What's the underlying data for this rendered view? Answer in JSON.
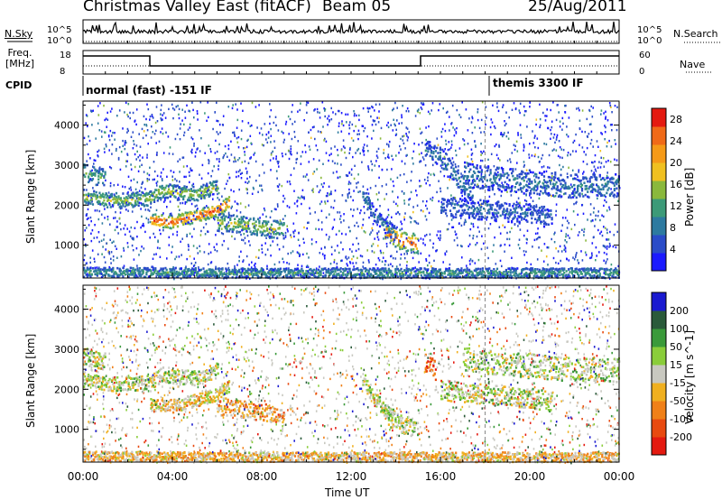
{
  "header": {
    "station": "Christmas Valley East (fitACF)",
    "beam": "Beam 05",
    "date": "25/Aug/2011"
  },
  "top_panels": {
    "nsky_label": "N.Sky",
    "nsky_ticks": [
      "10^5",
      "10^0"
    ],
    "nsearch_label": "N.Search",
    "nsearch_ticks": [
      "10^5",
      "10^0"
    ],
    "freq_label_line1": "Freq.",
    "freq_label_line2": "[MHz]",
    "freq_ticks": [
      "18",
      "8"
    ],
    "nave_label": "Nave",
    "nave_ticks": [
      "60",
      "0"
    ],
    "cpid_label": "CPID",
    "cpid_segments": [
      {
        "text": "normal (fast) -151 IF",
        "start_hour": 0
      },
      {
        "text": "themis 3300 IF",
        "start_hour": 18
      }
    ]
  },
  "chart_data": [
    {
      "type": "heatmap",
      "title": "",
      "xlabel": "",
      "ylabel": "Slant Range [km]",
      "xlim": [
        0,
        24
      ],
      "ylim": [
        180,
        4600
      ],
      "yticks": [
        "1000",
        "2000",
        "3000",
        "4000"
      ],
      "colorbar_label": "Power [dB]",
      "colorbar_ticks": [
        "4",
        "8",
        "12",
        "16",
        "20",
        "24",
        "28"
      ],
      "colorbar_range": [
        0,
        30
      ],
      "colorbar_colors": [
        "#1a1aff",
        "#2a4cc8",
        "#2d7aa0",
        "#3c9a78",
        "#8ab83c",
        "#f0c020",
        "#f59a18",
        "#f06a18",
        "#e41a10"
      ],
      "scatter_features": [
        {
          "name": "band-a",
          "points": [
            [
              0,
              2250
            ],
            [
              1,
              2150
            ],
            [
              2,
              2150
            ],
            [
              3,
              2200
            ],
            [
              3.5,
              2400
            ],
            [
              4,
              2350
            ],
            [
              5,
              2300
            ],
            [
              6,
              2500
            ]
          ],
          "width_km": 180,
          "level": 0.55
        },
        {
          "name": "band-b",
          "points": [
            [
              0,
              2850
            ],
            [
              0.5,
              2750
            ],
            [
              1,
              2700
            ]
          ],
          "width_km": 220,
          "level": 0.45
        },
        {
          "name": "band-c",
          "points": [
            [
              3,
              1650
            ],
            [
              4,
              1600
            ],
            [
              5,
              1750
            ],
            [
              6,
              1900
            ],
            [
              6.5,
              2100
            ]
          ],
          "width_km": 160,
          "level": 0.9
        },
        {
          "name": "band-d",
          "points": [
            [
              6,
              1600
            ],
            [
              7,
              1550
            ],
            [
              8,
              1450
            ],
            [
              9,
              1400
            ]
          ],
          "width_km": 220,
          "level": 0.55
        },
        {
          "name": "band-e",
          "points": [
            [
              13.5,
              1400
            ],
            [
              14,
              1200
            ],
            [
              14.5,
              1100
            ],
            [
              15,
              1050
            ]
          ],
          "width_km": 240,
          "level": 0.85
        },
        {
          "name": "band-f",
          "points": [
            [
              12.5,
              2300
            ],
            [
              13,
              1800
            ],
            [
              13.5,
              1500
            ],
            [
              14,
              1300
            ]
          ],
          "width_km": 180,
          "level": 0.3
        },
        {
          "name": "band-g",
          "points": [
            [
              15.3,
              3400
            ],
            [
              16,
              3200
            ],
            [
              17,
              2500
            ],
            [
              17.5,
              2200
            ]
          ],
          "width_km": 260,
          "level": 0.3
        },
        {
          "name": "band-h",
          "points": [
            [
              17,
              2800
            ],
            [
              18,
              2700
            ],
            [
              20,
              2600
            ],
            [
              22,
              2500
            ],
            [
              24,
              2500
            ]
          ],
          "width_km": 300,
          "level": 0.3
        },
        {
          "name": "band-i",
          "points": [
            [
              16,
              2000
            ],
            [
              18,
              1900
            ],
            [
              20,
              1800
            ],
            [
              21,
              1700
            ]
          ],
          "width_km": 250,
          "level": 0.25
        },
        {
          "name": "band-j",
          "points": [
            [
              0,
              350
            ],
            [
              6,
              330
            ],
            [
              12,
              330
            ],
            [
              18,
              330
            ],
            [
              24,
              330
            ]
          ],
          "width_km": 120,
          "level": 0.4
        }
      ]
    },
    {
      "type": "heatmap",
      "title": "",
      "xlabel": "Time UT",
      "ylabel": "Slant Range [km]",
      "xlim": [
        0,
        24
      ],
      "xticks": [
        "00:00",
        "04:00",
        "08:00",
        "12:00",
        "16:00",
        "20:00",
        "00:00"
      ],
      "ylim": [
        180,
        4600
      ],
      "yticks": [
        "1000",
        "2000",
        "3000",
        "4000"
      ],
      "colorbar_label": "Velocity [m s^-1]",
      "colorbar_ticks": [
        "200",
        "100",
        "50",
        "15",
        "-15",
        "-50",
        "-100",
        "-200"
      ],
      "colorbar_colors": [
        "#1a1ad0",
        "#2a5a3a",
        "#3a9a3a",
        "#8acd3a",
        "#c8c8c0",
        "#f0b020",
        "#f08018",
        "#e84a10",
        "#e41a10"
      ],
      "scatter_features": [
        {
          "name": "band-a",
          "points": [
            [
              0,
              2250
            ],
            [
              1,
              2150
            ],
            [
              2,
              2150
            ],
            [
              3,
              2200
            ],
            [
              3.5,
              2400
            ],
            [
              4,
              2350
            ],
            [
              5,
              2300
            ],
            [
              6,
              2500
            ]
          ],
          "width_km": 180,
          "level": 0.45
        },
        {
          "name": "band-b",
          "points": [
            [
              0,
              2850
            ],
            [
              0.5,
              2750
            ],
            [
              1,
              2700
            ]
          ],
          "width_km": 220,
          "level": 0.45
        },
        {
          "name": "band-c",
          "points": [
            [
              3,
              1650
            ],
            [
              4,
              1600
            ],
            [
              5,
              1750
            ],
            [
              6,
              1900
            ],
            [
              6.5,
              2100
            ]
          ],
          "width_km": 160,
          "level": 0.55
        },
        {
          "name": "band-d",
          "points": [
            [
              6,
              1600
            ],
            [
              7,
              1550
            ],
            [
              8,
              1450
            ],
            [
              9,
              1400
            ]
          ],
          "width_km": 220,
          "level": 0.65
        },
        {
          "name": "band-e",
          "points": [
            [
              13.5,
              1400
            ],
            [
              14,
              1200
            ],
            [
              14.5,
              1100
            ],
            [
              15,
              1050
            ]
          ],
          "width_km": 240,
          "level": 0.45
        },
        {
          "name": "band-f",
          "points": [
            [
              12.5,
              2300
            ],
            [
              13,
              1800
            ],
            [
              13.5,
              1500
            ],
            [
              14,
              1300
            ]
          ],
          "width_km": 180,
          "level": 0.45
        },
        {
          "name": "band-g",
          "points": [
            [
              15.3,
              2700
            ],
            [
              15.8,
              2500
            ]
          ],
          "width_km": 260,
          "level": 0.85
        },
        {
          "name": "band-h",
          "points": [
            [
              17,
              2800
            ],
            [
              18,
              2700
            ],
            [
              20,
              2600
            ],
            [
              22,
              2500
            ],
            [
              24,
              2500
            ]
          ],
          "width_km": 300,
          "level": 0.45
        },
        {
          "name": "band-i",
          "points": [
            [
              16,
              2000
            ],
            [
              18,
              1900
            ],
            [
              20,
              1800
            ],
            [
              21,
              1700
            ]
          ],
          "width_km": 250,
          "level": 0.45
        },
        {
          "name": "band-j",
          "points": [
            [
              0,
              350
            ],
            [
              6,
              330
            ],
            [
              12,
              330
            ],
            [
              18,
              330
            ],
            [
              24,
              330
            ]
          ],
          "width_km": 120,
          "level": 0.6
        }
      ]
    }
  ]
}
